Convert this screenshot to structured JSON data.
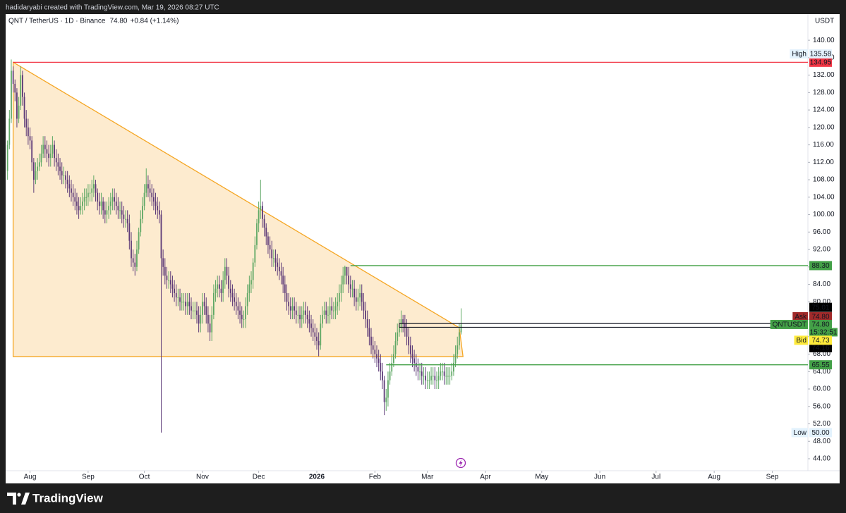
{
  "header": {
    "credit": "hadidaryabi created with TradingView.com, Mar 19, 2026 08:27 UTC",
    "footer_logo": "TradingView"
  },
  "chart_data": {
    "type": "candlestick",
    "title": "QNT / TetherUS · 1D · Binance",
    "last_price": "74.80",
    "change": "+0.84 (+1.14%)",
    "currency": "USDT",
    "x": [
      -12,
      -11,
      -10,
      -9,
      -8,
      -7,
      -6,
      -5,
      -4,
      -3,
      -2,
      -1,
      0,
      1,
      2,
      3,
      4,
      5,
      6,
      7,
      8,
      9,
      10,
      11,
      12,
      13,
      14,
      15,
      16,
      17,
      18,
      19,
      20,
      21,
      22,
      23,
      24,
      25,
      26,
      27,
      28,
      29,
      30,
      31,
      32,
      33,
      34,
      35,
      36,
      37,
      38,
      39,
      40,
      41,
      42,
      43,
      44,
      45,
      46,
      47,
      48,
      49,
      50,
      51,
      52,
      53,
      54,
      55,
      56,
      57,
      58,
      59,
      60,
      61,
      62,
      63,
      64,
      65,
      66,
      67,
      68,
      69,
      70,
      71,
      72,
      73,
      74,
      75,
      76,
      77,
      78,
      79,
      80,
      81,
      82,
      83,
      84,
      85,
      86,
      87,
      88,
      89,
      90,
      91,
      92,
      93,
      94,
      95,
      96,
      97,
      98,
      99,
      100,
      101,
      102,
      103,
      104,
      105,
      106,
      107,
      108,
      109,
      110,
      111,
      112,
      113,
      114,
      115,
      116,
      117,
      118,
      119,
      120,
      121,
      122,
      123,
      124,
      125,
      126,
      127,
      128,
      129,
      130,
      131,
      132,
      133,
      134,
      135,
      136,
      137,
      138,
      139,
      140,
      141,
      142,
      143,
      144,
      145,
      146,
      147,
      148,
      149,
      150,
      151,
      152,
      153,
      154,
      155,
      156,
      157,
      158,
      159,
      160,
      161,
      162,
      163,
      164,
      165,
      166,
      167,
      168,
      169,
      170,
      171,
      172,
      173,
      174,
      175,
      176,
      177,
      178,
      179,
      180,
      181,
      182,
      183,
      184,
      185,
      186,
      187,
      188,
      189,
      190,
      191,
      192,
      193,
      194,
      195,
      196,
      197,
      198,
      199,
      200,
      201,
      202,
      203,
      204,
      205,
      206,
      207,
      208,
      209,
      210,
      211,
      212,
      213,
      214,
      215,
      216,
      217,
      218,
      219,
      220,
      221,
      222,
      223,
      224,
      225,
      226,
      227,
      228,
      229,
      230
    ],
    "open": [
      110,
      116,
      122,
      133,
      130,
      128,
      122,
      125,
      132,
      127,
      122,
      120,
      118,
      117,
      112,
      108,
      110,
      111,
      112,
      114,
      116,
      115,
      114,
      113,
      114,
      116,
      113,
      112,
      111,
      110,
      109,
      109,
      108,
      107,
      106,
      105,
      104,
      103,
      102,
      101,
      102,
      103,
      104,
      104,
      105,
      105,
      106,
      107,
      105,
      103,
      102,
      103,
      101,
      100,
      101,
      102,
      103,
      104,
      103,
      102,
      101,
      101,
      100,
      99,
      99,
      98,
      94,
      90,
      89,
      88,
      92,
      96,
      99,
      102,
      105,
      107,
      106,
      105,
      104,
      103,
      102,
      101,
      100,
      90,
      88,
      86,
      85,
      85,
      84,
      83,
      82,
      81,
      81,
      80,
      80,
      80,
      79,
      80,
      79,
      78,
      78,
      78,
      77,
      75,
      77,
      80,
      79,
      77,
      75,
      73,
      77,
      82,
      83,
      84,
      83,
      82,
      85,
      88,
      86,
      83,
      82,
      81,
      80,
      79,
      78,
      77,
      76,
      76,
      79,
      82,
      84,
      85,
      89,
      93,
      98,
      101,
      102,
      99,
      97,
      95,
      93,
      92,
      90,
      90,
      89,
      88,
      87,
      86,
      84,
      82,
      80,
      79,
      78,
      79,
      78,
      77,
      77,
      76,
      77,
      78,
      77,
      76,
      75,
      74,
      73,
      72,
      71,
      70,
      75,
      77,
      78,
      77,
      77,
      79,
      78,
      78,
      79,
      80,
      82,
      84,
      86,
      88,
      86,
      84,
      83,
      83,
      81,
      80,
      81,
      82,
      80,
      78,
      76,
      74,
      72,
      70,
      69,
      68,
      67,
      66,
      64,
      62,
      57,
      58,
      62,
      64,
      66,
      68,
      71,
      73,
      74,
      76,
      75,
      74,
      72,
      70,
      68,
      67,
      66,
      65,
      64,
      64,
      63,
      63,
      62,
      62,
      62,
      63,
      63,
      62,
      62,
      63,
      64,
      64,
      63,
      63,
      63,
      63,
      64,
      66,
      68,
      70,
      73
    ],
    "high": [
      117,
      124,
      135.58,
      134,
      131,
      129,
      127,
      134,
      133,
      128,
      124,
      122,
      120,
      118,
      113,
      112,
      113,
      114,
      116,
      118,
      118,
      117,
      116,
      116,
      118,
      117,
      115,
      114,
      113,
      112,
      111,
      110,
      110,
      109,
      108,
      107,
      106,
      105,
      104,
      104,
      105,
      106,
      106,
      107,
      107,
      108,
      109,
      108,
      106,
      105,
      105,
      104,
      103,
      103,
      104,
      105,
      106,
      106,
      105,
      104,
      103,
      103,
      102,
      101,
      101,
      100,
      96,
      92,
      91,
      94,
      97,
      101,
      104,
      107,
      110.6,
      109,
      108,
      107,
      106,
      105,
      104,
      103,
      101,
      92,
      90,
      88,
      87,
      87,
      86,
      85,
      84,
      83,
      83,
      82,
      82,
      82,
      82,
      82,
      81,
      80,
      80,
      80,
      79,
      79,
      82,
      82,
      81,
      79,
      77,
      79,
      84,
      85,
      86,
      86,
      85,
      87,
      90,
      90,
      88,
      85,
      84,
      83,
      82,
      81,
      80,
      79,
      78,
      81,
      84,
      86,
      87,
      90,
      95,
      99,
      103,
      108,
      103,
      100,
      98,
      96,
      95,
      94,
      92,
      92,
      91,
      90,
      89,
      88,
      86,
      84,
      82,
      81,
      81,
      81,
      80,
      79,
      79,
      79,
      80,
      80,
      79,
      78,
      77,
      76,
      75,
      74,
      73,
      77,
      79,
      80,
      80,
      79,
      81,
      81,
      80,
      81,
      82,
      84,
      86,
      88,
      88.3,
      88,
      88,
      86,
      85,
      85,
      83,
      83,
      84,
      84,
      82,
      80,
      78,
      76,
      74,
      72,
      71,
      70,
      69,
      68,
      66,
      63,
      60,
      64,
      66,
      68,
      70,
      73,
      75,
      76,
      78,
      77,
      77,
      76,
      74,
      72,
      70,
      69,
      68,
      67,
      66,
      66,
      65,
      65,
      64,
      64,
      65,
      65,
      65,
      64,
      65,
      66,
      66,
      66,
      65,
      65,
      65,
      66,
      68,
      70,
      72,
      75,
      78.5
    ],
    "low": [
      108,
      115,
      121,
      128,
      126,
      120,
      121,
      124,
      125,
      120,
      118,
      116,
      115,
      110,
      105,
      107,
      108,
      110,
      111,
      113,
      113,
      112,
      111,
      111,
      113,
      111,
      110,
      109,
      108,
      107,
      107,
      106,
      105,
      104,
      103,
      102,
      101,
      100,
      99,
      100,
      100,
      101,
      102,
      102,
      103,
      103,
      104,
      103,
      101,
      100,
      100,
      99,
      98,
      98,
      99,
      100,
      101,
      101,
      100,
      99,
      99,
      98,
      97,
      97,
      96,
      92,
      88,
      87,
      86,
      87,
      91,
      95,
      98,
      101,
      104,
      104,
      103,
      102,
      101,
      100,
      99,
      98,
      50,
      86,
      84,
      83,
      83,
      82,
      81,
      80,
      79,
      79,
      78,
      78,
      78,
      77,
      77,
      77,
      76,
      76,
      76,
      75,
      73,
      73,
      75,
      77,
      75,
      73,
      71,
      71,
      76,
      80,
      81,
      81,
      80,
      80,
      83,
      84,
      81,
      80,
      79,
      78,
      77,
      76,
      75,
      74,
      74,
      74,
      77,
      80,
      82,
      83,
      88,
      92,
      96,
      99,
      97,
      95,
      93,
      91,
      90,
      88,
      88,
      87,
      86,
      85,
      84,
      82,
      80,
      78,
      77,
      76,
      76,
      76,
      75,
      75,
      74,
      74,
      75,
      75,
      74,
      73,
      72,
      71,
      70,
      69,
      67.5,
      69,
      74,
      76,
      75,
      75,
      75,
      76,
      76,
      76,
      77,
      78,
      80,
      82,
      84,
      84,
      82,
      81,
      81,
      79,
      78,
      78,
      79,
      78,
      76,
      74,
      72,
      70,
      68,
      67,
      66,
      65,
      64,
      62,
      60,
      54,
      55,
      56,
      61,
      63,
      65,
      67,
      70,
      72,
      73,
      73,
      72,
      70,
      68,
      66,
      65,
      64,
      63,
      62,
      62,
      61,
      61,
      60,
      60,
      60,
      61,
      61,
      60,
      60,
      60,
      62,
      62,
      61,
      61,
      61,
      61,
      62,
      63,
      65,
      67,
      69,
      72.5
    ],
    "close": [
      116,
      122,
      133,
      130,
      128,
      122,
      125,
      132,
      127,
      122,
      120,
      118,
      117,
      112,
      108,
      110,
      111,
      112,
      114,
      116,
      115,
      114,
      113,
      114,
      116,
      113,
      112,
      111,
      110,
      109,
      109,
      108,
      107,
      106,
      105,
      104,
      103,
      102,
      101,
      102,
      103,
      104,
      104,
      105,
      105,
      106,
      107,
      105,
      103,
      102,
      103,
      101,
      100,
      101,
      102,
      103,
      104,
      103,
      102,
      101,
      101,
      100,
      99,
      99,
      98,
      94,
      90,
      89,
      88,
      92,
      96,
      99,
      102,
      105,
      107,
      106,
      105,
      104,
      103,
      102,
      101,
      100,
      90,
      88,
      86,
      85,
      85,
      84,
      83,
      82,
      81,
      81,
      80,
      80,
      80,
      79,
      80,
      79,
      78,
      78,
      78,
      77,
      75,
      77,
      80,
      79,
      77,
      75,
      73,
      77,
      82,
      83,
      84,
      83,
      82,
      85,
      88,
      86,
      83,
      82,
      81,
      80,
      79,
      78,
      77,
      76,
      76,
      79,
      82,
      84,
      85,
      89,
      93,
      98,
      101,
      102,
      99,
      97,
      95,
      93,
      92,
      90,
      90,
      89,
      88,
      87,
      86,
      84,
      82,
      80,
      79,
      78,
      79,
      78,
      77,
      77,
      76,
      77,
      78,
      77,
      76,
      75,
      74,
      73,
      72,
      71,
      70,
      75,
      77,
      78,
      77,
      77,
      79,
      78,
      78,
      79,
      80,
      82,
      84,
      86,
      88,
      86,
      84,
      83,
      83,
      81,
      80,
      81,
      82,
      80,
      78,
      76,
      74,
      72,
      70,
      69,
      68,
      67,
      66,
      64,
      62,
      57,
      58,
      62,
      64,
      66,
      68,
      71,
      73,
      74,
      76,
      75,
      74,
      72,
      70,
      68,
      67,
      66,
      65,
      64,
      64,
      63,
      63,
      62,
      62,
      62,
      63,
      63,
      62,
      62,
      63,
      64,
      64,
      63,
      63,
      63,
      63,
      64,
      66,
      68,
      70,
      73,
      74.8
    ],
    "up_color": "#5fa865",
    "down_color": "#5d3a78",
    "xlim": [
      -13,
      415
    ],
    "xticks": [
      {
        "value": 0,
        "label": "Aug"
      },
      {
        "value": 31,
        "label": "Sep"
      },
      {
        "value": 61,
        "label": "Oct"
      },
      {
        "value": 92,
        "label": "Nov"
      },
      {
        "value": 122,
        "label": "Dec"
      },
      {
        "value": 153,
        "label": "2026"
      },
      {
        "value": 184,
        "label": "Feb"
      },
      {
        "value": 212,
        "label": "Mar"
      },
      {
        "value": 243,
        "label": "Apr"
      },
      {
        "value": 273,
        "label": "May"
      },
      {
        "value": 304,
        "label": "Jun"
      },
      {
        "value": 334,
        "label": "Jul"
      },
      {
        "value": 365,
        "label": "Aug"
      },
      {
        "value": 396,
        "label": "Sep"
      }
    ],
    "ylim": [
      41.25,
      146
    ],
    "yticks": [
      {
        "value": 44,
        "label": "44.00"
      },
      {
        "value": 48,
        "label": "48.00"
      },
      {
        "value": 52,
        "label": "52.00"
      },
      {
        "value": 56,
        "label": "56.00"
      },
      {
        "value": 60,
        "label": "60.00"
      },
      {
        "value": 64,
        "label": "64.00"
      },
      {
        "value": 68,
        "label": "68.00"
      },
      {
        "value": 72,
        "label": "72.00"
      },
      {
        "value": 76,
        "label": "76.00"
      },
      {
        "value": 80,
        "label": "80.00"
      },
      {
        "value": 84,
        "label": "84.00"
      },
      {
        "value": 88,
        "label": "88.00"
      },
      {
        "value": 92,
        "label": "92.00"
      },
      {
        "value": 96,
        "label": "96.00"
      },
      {
        "value": 100,
        "label": "100.00"
      },
      {
        "value": 104,
        "label": "104.00"
      },
      {
        "value": 108,
        "label": "108.00"
      },
      {
        "value": 112,
        "label": "112.00"
      },
      {
        "value": 116,
        "label": "116.00"
      },
      {
        "value": 120,
        "label": "120.00"
      },
      {
        "value": 124,
        "label": "124.00"
      },
      {
        "value": 128,
        "label": "128.00"
      },
      {
        "value": 132,
        "label": "132.00"
      },
      {
        "value": 136,
        "label": "136.00"
      },
      {
        "value": 140,
        "label": "140.00"
      }
    ],
    "levels": [
      {
        "value": 134.95,
        "label": "134.95",
        "color": "#f23645",
        "from": -9
      },
      {
        "value": 88.3,
        "label": "88.30",
        "color": "#43a047",
        "from": 171
      },
      {
        "value": 65.55,
        "label": "65.55",
        "color": "#43a047",
        "from": 190
      }
    ],
    "range_box": {
      "top": 75.01,
      "top_label": "75.01",
      "bottom": 74.16,
      "bottom_label": "74.16",
      "from": 197
    },
    "triangle": {
      "points": [
        [
          -9,
          134.95
        ],
        [
          229,
          74.06
        ],
        [
          231,
          67.43
        ],
        [
          -9,
          67.43
        ]
      ],
      "color": "#f5a623"
    },
    "quote": {
      "high": {
        "tag": "High",
        "value": 135.58,
        "label": "135.58"
      },
      "ask": {
        "tag": "Ask",
        "value": 74.8,
        "label": "74.80"
      },
      "symbol": {
        "tag": "QNTUSDT",
        "value": 74.8,
        "label": "74.80",
        "countdown": "15:32:51"
      },
      "bid": {
        "tag": "Bid",
        "value": 74.73,
        "label": "74.73"
      },
      "low": {
        "tag": "Low",
        "value": 50,
        "label": "50.00"
      }
    }
  }
}
